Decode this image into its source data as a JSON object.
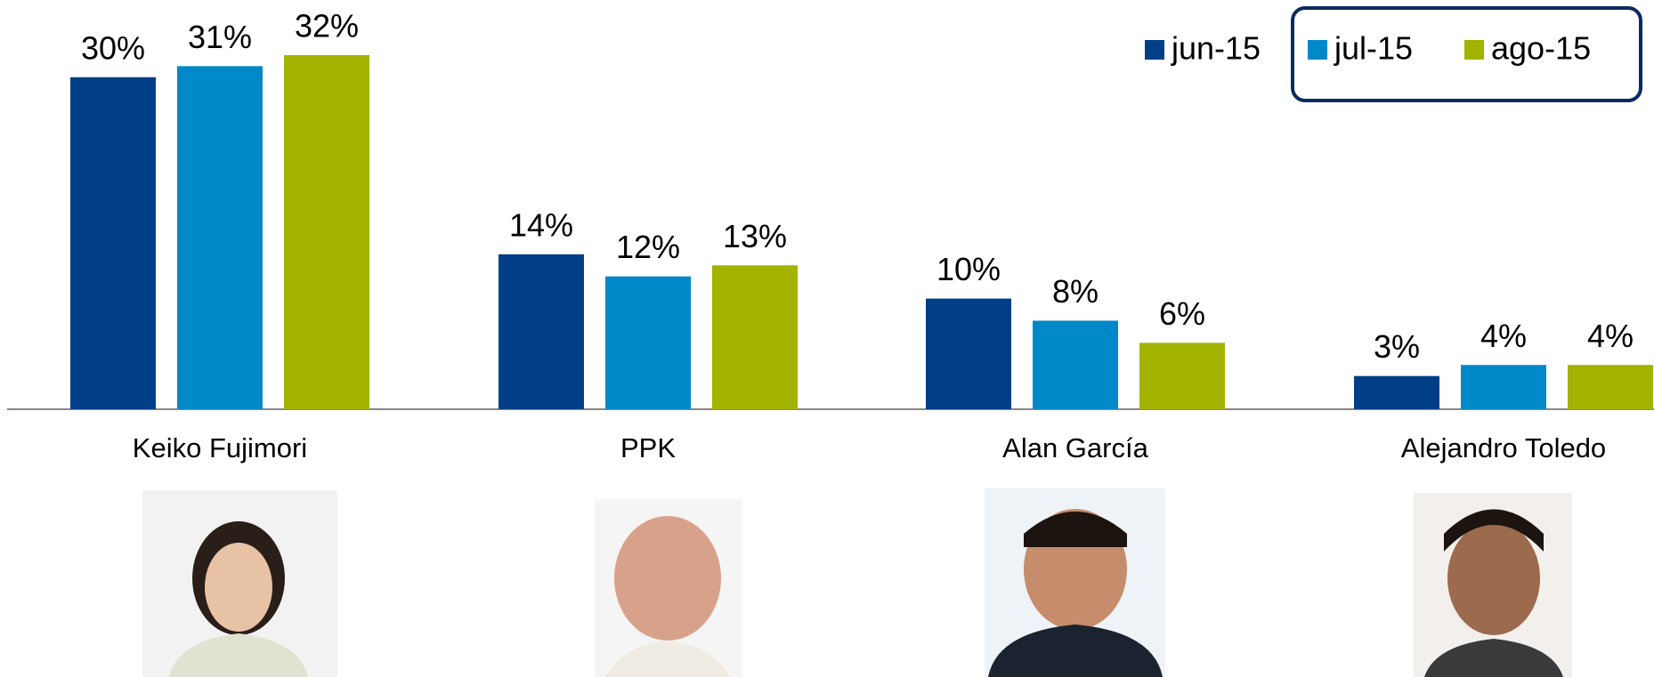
{
  "chart_data": {
    "type": "bar",
    "categories": [
      "Keiko Fujimori",
      "PPK",
      "Alan García",
      "Alejandro Toledo"
    ],
    "series": [
      {
        "name": "jun-15",
        "color": "#003f87",
        "values": [
          30,
          14,
          10,
          3
        ],
        "value_labels": [
          "30%",
          "14%",
          "10%",
          "3%"
        ]
      },
      {
        "name": "jul-15",
        "color": "#0088c8",
        "values": [
          31,
          12,
          8,
          4
        ],
        "value_labels": [
          "31%",
          "12%",
          "8%",
          "4%"
        ]
      },
      {
        "name": "ago-15",
        "color": "#a2b300",
        "values": [
          32,
          13,
          6,
          4
        ],
        "value_labels": [
          "32%",
          "13%",
          "6%",
          "4%"
        ]
      }
    ],
    "legend": "top-right"
  }
}
